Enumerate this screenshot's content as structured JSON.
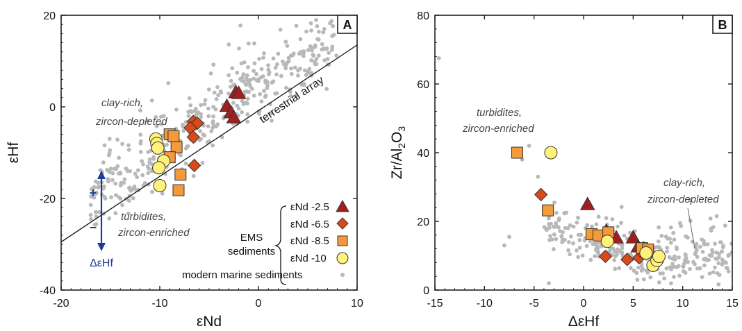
{
  "chart_data": [
    {
      "panel": "A",
      "type": "scatter",
      "xlabel": "εNd",
      "ylabel": "εHf",
      "xlim": [
        -20,
        10
      ],
      "ylim": [
        -40,
        20
      ],
      "xticks": [
        "-20",
        "-10",
        "0",
        "10"
      ],
      "yticks": [
        "-40",
        "-20",
        "0",
        "20"
      ],
      "reference_line": {
        "label": "terrestrial array",
        "points": [
          [
            -20,
            -29.5
          ],
          [
            10,
            13.5
          ]
        ]
      },
      "annotations": {
        "clay": [
          "clay-rich,",
          "zircon-depleted"
        ],
        "turb": [
          "turbidites,",
          "zircon-enriched"
        ],
        "delta_label": "ΔεHf",
        "plus": "+",
        "minus": "−"
      },
      "legend": {
        "group_label": [
          "EMS",
          "sediments"
        ],
        "entries": [
          "εNd -2.5",
          "εNd -6.5",
          "εNd -8.5",
          "εNd -10"
        ],
        "background_label": "modern marine sediments"
      },
      "series": [
        {
          "name": "εNd -2.5",
          "marker": "triangle",
          "color": "#a31f1f",
          "points": [
            [
              -2.3,
              3.2
            ],
            [
              -2,
              3.0
            ],
            [
              -3.2,
              0.2
            ],
            [
              -2.8,
              -1.2
            ],
            [
              -2.5,
              -2.3
            ]
          ]
        },
        {
          "name": "εNd -6.5",
          "marker": "diamond",
          "color": "#d94a1a",
          "points": [
            [
              -6.6,
              -3.2
            ],
            [
              -6.2,
              -3.6
            ],
            [
              -6.9,
              -4.6
            ],
            [
              -6.6,
              -6.6
            ],
            [
              -6.5,
              -12.8
            ]
          ]
        },
        {
          "name": "εNd -8.5",
          "marker": "square",
          "color": "#f39a3a",
          "points": [
            [
              -9.0,
              -6.0
            ],
            [
              -8.6,
              -6.4
            ],
            [
              -8.3,
              -8.8
            ],
            [
              -9.0,
              -11.0
            ],
            [
              -7.9,
              -14.8
            ],
            [
              -8.1,
              -18.2
            ]
          ]
        },
        {
          "name": "εNd -10",
          "marker": "circle",
          "color": "#fff27a",
          "points": [
            [
              -10.4,
              -7.0
            ],
            [
              -10.3,
              -8.0
            ],
            [
              -10.2,
              -9.0
            ],
            [
              -9.6,
              -11.8
            ],
            [
              -10.1,
              -13.3
            ],
            [
              -10.0,
              -17.2
            ]
          ]
        },
        {
          "name": "modern marine sediments",
          "marker": "dot",
          "color": "#b8b8b8",
          "points": []
        }
      ]
    },
    {
      "panel": "B",
      "type": "scatter",
      "xlabel": "ΔεHf",
      "ylabel": "Zr/Al2O3",
      "xlim": [
        -15,
        15
      ],
      "ylim": [
        0,
        80
      ],
      "xticks": [
        "-15",
        "-10",
        "-5",
        "0",
        "5",
        "10",
        "15"
      ],
      "yticks": [
        "0",
        "20",
        "40",
        "60",
        "80"
      ],
      "annotations": {
        "turb": [
          "turbidites,",
          "zircon-enriched"
        ],
        "clay": [
          "clay-rich,",
          "zircon-depleted"
        ]
      },
      "series": [
        {
          "name": "εNd -2.5",
          "marker": "triangle",
          "color": "#a31f1f",
          "points": [
            [
              0.4,
              25.0
            ],
            [
              2.3,
              17.2
            ],
            [
              3.3,
              15.3
            ],
            [
              5.0,
              15.3
            ],
            [
              5.5,
              12.7
            ],
            [
              6.0,
              12.0
            ]
          ]
        },
        {
          "name": "εNd -6.5",
          "marker": "diamond",
          "color": "#d94a1a",
          "points": [
            [
              -4.3,
              27.8
            ],
            [
              2.2,
              9.8
            ],
            [
              4.4,
              8.9
            ],
            [
              5.6,
              9.4
            ],
            [
              5.8,
              11.2
            ]
          ]
        },
        {
          "name": "εNd -8.5",
          "marker": "square",
          "color": "#f39a3a",
          "points": [
            [
              -6.7,
              40.0
            ],
            [
              -3.6,
              23.2
            ],
            [
              0.8,
              16.3
            ],
            [
              1.5,
              15.9
            ],
            [
              2.5,
              16.8
            ],
            [
              5.9,
              12.2
            ],
            [
              6.5,
              11.8
            ]
          ]
        },
        {
          "name": "εNd -10",
          "marker": "circle",
          "color": "#fff27a",
          "points": [
            [
              -3.3,
              40.0
            ],
            [
              2.4,
              14.2
            ],
            [
              6.3,
              10.8
            ],
            [
              7.0,
              7.2
            ],
            [
              7.4,
              8.6
            ],
            [
              7.6,
              9.8
            ]
          ]
        },
        {
          "name": "modern marine sediments",
          "marker": "dot",
          "color": "#b8b8b8",
          "points": []
        }
      ]
    }
  ]
}
